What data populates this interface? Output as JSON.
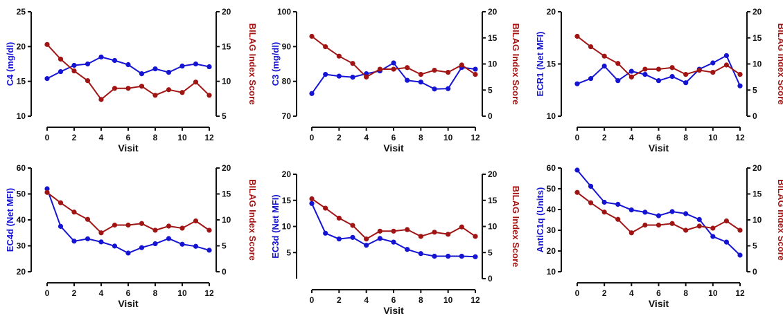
{
  "colors": {
    "left": "#1414d2",
    "right": "#a01414",
    "axis": "#111111"
  },
  "chart_data": [
    {
      "type": "line",
      "xlabel": "Visit",
      "ylabel": "C4 (mg/dl)",
      "y2label": "BILAG Index Score",
      "xlim": [
        0,
        12
      ],
      "xticks": [
        0,
        2,
        4,
        6,
        8,
        10,
        12
      ],
      "ylim": [
        10,
        25
      ],
      "yticks": [
        10,
        15,
        20,
        25
      ],
      "y2lim": [
        5,
        20
      ],
      "y2ticks": [
        5,
        10,
        15,
        20
      ],
      "grid": false,
      "x": [
        0,
        1,
        2,
        3,
        4,
        5,
        6,
        7,
        8,
        9,
        10,
        11,
        12
      ],
      "series": [
        {
          "axis": "left",
          "values": [
            15.4,
            16.4,
            17.3,
            17.5,
            18.5,
            18.0,
            17.4,
            16.1,
            16.8,
            16.3,
            17.2,
            17.5,
            17.1
          ]
        },
        {
          "axis": "right",
          "values": [
            15.3,
            13.2,
            11.5,
            10.1,
            7.4,
            9.0,
            9.0,
            9.3,
            8.0,
            8.8,
            8.4,
            9.9,
            8.0
          ]
        }
      ]
    },
    {
      "type": "line",
      "xlabel": "Visit",
      "ylabel": "C3 (mg/dl)",
      "y2label": "BILAG Index Score",
      "xlim": [
        0,
        12
      ],
      "xticks": [
        0,
        2,
        4,
        6,
        8,
        10,
        12
      ],
      "ylim": [
        70,
        100
      ],
      "yticks": [
        70,
        80,
        90,
        100
      ],
      "y2lim": [
        0,
        20
      ],
      "y2ticks": [
        0,
        5,
        10,
        15,
        20
      ],
      "grid": false,
      "x": [
        0,
        1,
        2,
        3,
        4,
        5,
        6,
        7,
        8,
        9,
        10,
        11,
        12
      ],
      "series": [
        {
          "axis": "left",
          "values": [
            76.5,
            82.0,
            81.5,
            81.2,
            82.2,
            83.0,
            85.3,
            80.3,
            79.8,
            77.8,
            77.9,
            84.0,
            83.5
          ]
        },
        {
          "axis": "right",
          "values": [
            15.3,
            13.3,
            11.5,
            10.1,
            7.5,
            9.0,
            9.0,
            9.3,
            8.0,
            8.8,
            8.4,
            9.8,
            8.0
          ]
        }
      ]
    },
    {
      "type": "line",
      "xlabel": "Visit",
      "ylabel": "ECR1 (Net MFI)",
      "y2label": "BILAG Index Score",
      "xlim": [
        0,
        12
      ],
      "xticks": [
        0,
        2,
        4,
        6,
        8,
        10,
        12
      ],
      "ylim": [
        10,
        20
      ],
      "yticks": [
        10,
        15,
        20
      ],
      "y2lim": [
        0,
        20
      ],
      "y2ticks": [
        0,
        5,
        10,
        15,
        20
      ],
      "grid": false,
      "x": [
        0,
        1,
        2,
        3,
        4,
        5,
        6,
        7,
        8,
        9,
        10,
        11,
        12
      ],
      "series": [
        {
          "axis": "left",
          "values": [
            13.1,
            13.6,
            14.8,
            13.4,
            14.3,
            14.0,
            13.4,
            13.8,
            13.2,
            14.5,
            15.1,
            15.8,
            12.9
          ]
        },
        {
          "axis": "right",
          "values": [
            15.3,
            13.3,
            11.5,
            10.1,
            7.5,
            9.0,
            9.0,
            9.3,
            8.0,
            8.8,
            8.4,
            9.8,
            8.0
          ]
        }
      ]
    },
    {
      "type": "line",
      "xlabel": "Visit",
      "ylabel": "EC4d (Net MFI)",
      "y2label": "BILAG Index Score",
      "xlim": [
        0,
        12
      ],
      "xticks": [
        0,
        2,
        4,
        6,
        8,
        10,
        12
      ],
      "ylim": [
        20,
        60
      ],
      "yticks": [
        20,
        30,
        40,
        50,
        60
      ],
      "y2lim": [
        0,
        20
      ],
      "y2ticks": [
        0,
        5,
        10,
        15,
        20
      ],
      "grid": false,
      "x": [
        0,
        1,
        2,
        3,
        4,
        5,
        6,
        7,
        8,
        9,
        10,
        11,
        12
      ],
      "series": [
        {
          "axis": "left",
          "values": [
            52.0,
            37.5,
            31.8,
            32.7,
            31.5,
            29.9,
            27.2,
            29.3,
            30.8,
            32.8,
            30.6,
            29.8,
            28.3
          ]
        },
        {
          "axis": "right",
          "values": [
            15.3,
            13.3,
            11.5,
            10.1,
            7.5,
            9.0,
            9.0,
            9.3,
            8.0,
            8.8,
            8.4,
            9.8,
            8.0
          ]
        }
      ]
    },
    {
      "type": "line",
      "xlabel": "Visit",
      "ylabel": "EC3d (Net MFI)",
      "y2label": "BILAG Index Score",
      "xlim": [
        0,
        12
      ],
      "xticks": [
        0,
        2,
        4,
        6,
        8,
        10,
        12
      ],
      "ylim": [
        0,
        20
      ],
      "yticks": [
        5,
        10,
        15,
        20
      ],
      "y2lim": [
        0,
        20
      ],
      "y2ticks": [
        0,
        5,
        10,
        15,
        20
      ],
      "grid": false,
      "x": [
        0,
        1,
        2,
        3,
        4,
        5,
        6,
        7,
        8,
        9,
        10,
        11,
        12
      ],
      "series": [
        {
          "axis": "left",
          "values": [
            14.4,
            8.7,
            7.6,
            7.9,
            6.4,
            7.7,
            7.0,
            5.6,
            4.8,
            4.3,
            4.3,
            4.3,
            4.2
          ]
        },
        {
          "axis": "right",
          "values": [
            15.3,
            13.5,
            11.6,
            10.2,
            7.6,
            9.1,
            9.1,
            9.4,
            8.1,
            8.9,
            8.5,
            9.9,
            8.1
          ]
        }
      ]
    },
    {
      "type": "line",
      "xlabel": "Visit",
      "ylabel": "AntiC1q (Units)",
      "y2label": "BILAG Index Score",
      "xlim": [
        0,
        12
      ],
      "xticks": [
        0,
        2,
        4,
        6,
        8,
        10,
        12
      ],
      "ylim": [
        10,
        60
      ],
      "yticks": [
        10,
        20,
        30,
        40,
        50,
        60
      ],
      "y2lim": [
        0,
        20
      ],
      "y2ticks": [
        0,
        5,
        10,
        15,
        20
      ],
      "grid": false,
      "x": [
        0,
        1,
        2,
        3,
        4,
        5,
        6,
        7,
        8,
        9,
        10,
        11,
        12
      ],
      "series": [
        {
          "axis": "left",
          "values": [
            59.0,
            51.2,
            43.5,
            42.5,
            39.8,
            38.7,
            37.0,
            39.0,
            38.0,
            35.2,
            27.0,
            24.3,
            18.0
          ]
        },
        {
          "axis": "right",
          "values": [
            15.3,
            13.3,
            11.5,
            10.1,
            7.5,
            9.0,
            9.0,
            9.3,
            8.0,
            8.8,
            8.4,
            9.8,
            8.0
          ]
        }
      ]
    }
  ]
}
